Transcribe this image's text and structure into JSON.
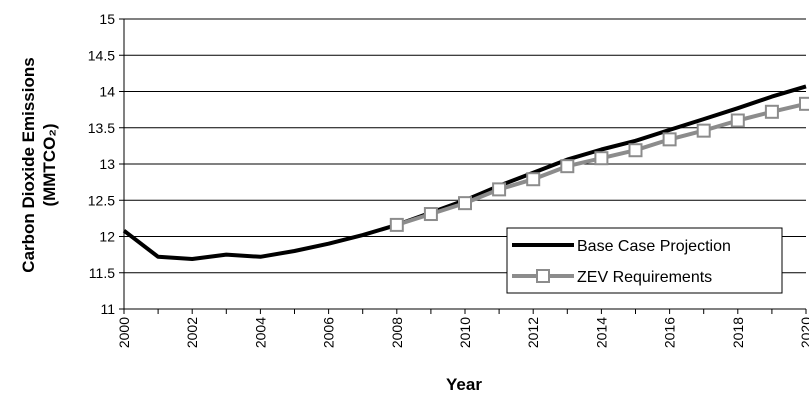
{
  "chart_data": {
    "type": "line",
    "title": "",
    "xlabel": "Year",
    "ylabel_line1": "Carbon Dioxide Emissions",
    "ylabel_line2": "(MMTCO₂)",
    "ylim": [
      11,
      15
    ],
    "yticks": [
      11,
      11.5,
      12,
      12.5,
      13,
      13.5,
      14,
      14.5,
      15
    ],
    "ytick_labels": [
      "11",
      "11.5",
      "12",
      "12.5",
      "13",
      "13.5",
      "14",
      "14.5",
      "15"
    ],
    "xlim": [
      2000,
      2020
    ],
    "xticks": [
      2000,
      2002,
      2004,
      2006,
      2008,
      2010,
      2012,
      2014,
      2016,
      2018,
      2020
    ],
    "xtick_labels": [
      "2000",
      "2002",
      "2004",
      "2006",
      "2008",
      "2010",
      "2012",
      "2014",
      "2016",
      "2018",
      "2020"
    ],
    "grid": "horizontal",
    "legend_position": "bottom-right",
    "series": [
      {
        "name": "Base Case Projection",
        "color": "#000000",
        "marker": "none",
        "x": [
          2000,
          2001,
          2002,
          2003,
          2004,
          2005,
          2006,
          2007,
          2008,
          2009,
          2010,
          2011,
          2012,
          2013,
          2014,
          2015,
          2016,
          2017,
          2018,
          2019,
          2020
        ],
        "y": [
          12.08,
          11.72,
          11.69,
          11.75,
          11.72,
          11.8,
          11.9,
          12.02,
          12.16,
          12.33,
          12.5,
          12.7,
          12.88,
          13.06,
          13.2,
          13.32,
          13.47,
          13.62,
          13.77,
          13.93,
          14.07
        ]
      },
      {
        "name": "ZEV Requirements",
        "color": "#8c8c8c",
        "marker": "open-square",
        "x": [
          2008,
          2009,
          2010,
          2011,
          2012,
          2013,
          2014,
          2015,
          2016,
          2017,
          2018,
          2019,
          2020
        ],
        "y": [
          12.16,
          12.31,
          12.46,
          12.65,
          12.79,
          12.97,
          13.08,
          13.19,
          13.34,
          13.46,
          13.6,
          13.72,
          13.83
        ]
      }
    ]
  }
}
